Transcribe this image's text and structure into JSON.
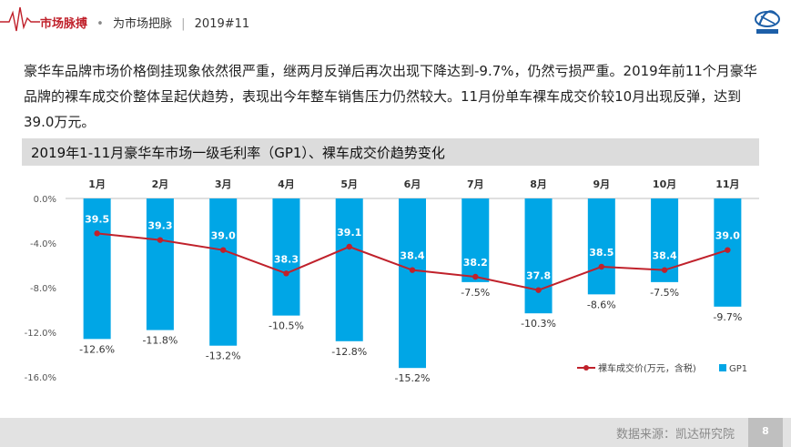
{
  "header": {
    "brand_main": "市场脉搏",
    "brand_dot": "•",
    "brand_sub": "为市场把脉",
    "brand_date": "2019#11"
  },
  "intro": "豪华车品牌市场价格倒挂现象依然很严重，继两月反弹后再次出现下降达到-9.7%，仍然亏损严重。2019年前11个月豪华品牌的裸车成交价整体呈起伏趋势，表现出今年整车销售压力仍然较大。11月份单车裸车成交价较10月出现反弹，达到39.0万元。",
  "colors": {
    "bar": "#00a6e6",
    "line": "#c0212b",
    "title_bg": "#dcdcdc",
    "footer_bg": "#e2e2e2"
  },
  "chart_data": {
    "type": "bar",
    "title": "2019年1-11月豪华车市场一级毛利率（GP1）、裸车成交价趋势变化",
    "categories": [
      "1月",
      "2月",
      "3月",
      "4月",
      "5月",
      "6月",
      "7月",
      "8月",
      "9月",
      "10月",
      "11月"
    ],
    "series": [
      {
        "name": "GP1",
        "type": "bar",
        "values": [
          -12.6,
          -11.8,
          -13.2,
          -10.5,
          -12.8,
          -15.2,
          -7.5,
          -10.3,
          -8.6,
          -7.5,
          -9.7
        ],
        "labels": [
          "-12.6%",
          "-11.8%",
          "-13.2%",
          "-10.5%",
          "-12.8%",
          "-15.2%",
          "-7.5%",
          "-10.3%",
          "-8.6%",
          "-7.5%",
          "-9.7%"
        ]
      },
      {
        "name": "裸车成交价(万元，含税)",
        "type": "line",
        "values": [
          39.5,
          39.3,
          39.0,
          38.3,
          39.1,
          38.4,
          38.2,
          37.8,
          38.5,
          38.4,
          39.0
        ],
        "labels": [
          "39.5",
          "39.3",
          "39.0",
          "38.3",
          "39.1",
          "38.4",
          "38.2",
          "37.8",
          "38.5",
          "38.4",
          "39.0"
        ]
      }
    ],
    "y_ticks": [
      "0.0%",
      "-4.0%",
      "-8.0%",
      "-12.0%",
      "-16.0%"
    ],
    "ylim": [
      -16,
      0
    ],
    "legend_position": "bottom-right",
    "legend": [
      {
        "label": "裸车成交价(万元，含税)",
        "kind": "line"
      },
      {
        "label": "GP1",
        "kind": "bar"
      }
    ]
  },
  "footer": {
    "source": "数据来源：凯达研究院",
    "page": "8"
  }
}
